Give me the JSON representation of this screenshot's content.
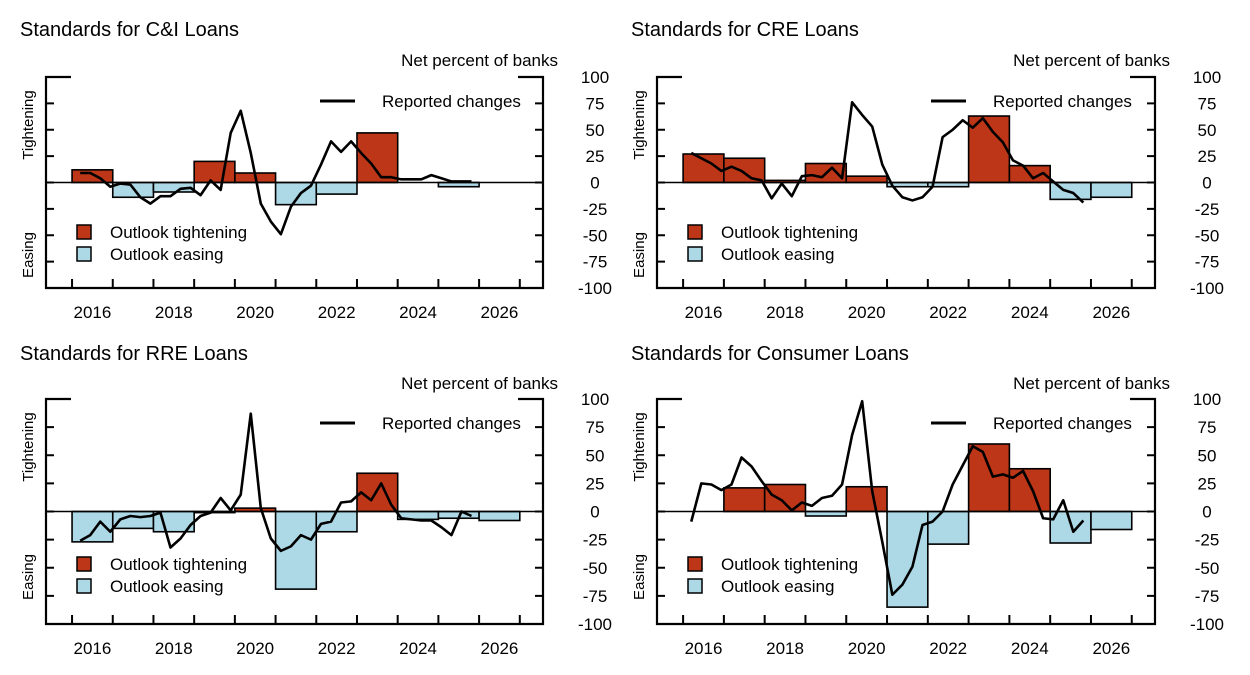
{
  "colors": {
    "tightening": "#BD3617",
    "easing": "#ADD8E6",
    "line": "#000000"
  },
  "chart_data": [
    {
      "type": "bar+line",
      "title": "Standards for C&I Loans",
      "ylabel": "Net percent of banks",
      "upper_label": "Tightening",
      "lower_label": "Easing",
      "ylim": [
        -100,
        100
      ],
      "yticks": [
        "100",
        "75",
        "50",
        "25",
        "0",
        "-25",
        "-50",
        "-75",
        "-100"
      ],
      "xticks": [
        "2016",
        "2018",
        "2020",
        "2022",
        "2024",
        "2026"
      ],
      "legend": [
        "Reported changes",
        "Outlook tightening",
        "Outlook easing"
      ],
      "bars": {
        "categories": [
          "2016",
          "2017",
          "2018",
          "2019",
          "2020",
          "2021",
          "2022",
          "2023",
          "2024",
          "2025",
          "2026"
        ],
        "values": [
          12,
          -14,
          -9,
          20,
          9,
          -21,
          -11,
          47,
          0,
          -4,
          0
        ]
      },
      "line": {
        "name": "Reported changes",
        "values": [
          9,
          9,
          4,
          -4,
          -1,
          -2,
          -14,
          -20,
          -13,
          -13,
          -6,
          -5,
          -12,
          2,
          -7,
          47,
          68,
          28,
          -20,
          -37,
          -49,
          -23,
          -10,
          -3,
          17,
          39,
          29,
          39,
          28,
          18,
          5,
          5,
          3,
          3,
          3,
          7,
          4,
          1,
          1,
          1
        ]
      }
    },
    {
      "type": "bar+line",
      "title": "Standards for CRE Loans",
      "ylabel": "Net percent of banks",
      "upper_label": "Tightening",
      "lower_label": "Easing",
      "ylim": [
        -100,
        100
      ],
      "yticks": [
        "100",
        "75",
        "50",
        "25",
        "0",
        "-25",
        "-50",
        "-75",
        "-100"
      ],
      "xticks": [
        "2016",
        "2018",
        "2020",
        "2022",
        "2024",
        "2026"
      ],
      "legend": [
        "Reported changes",
        "Outlook tightening",
        "Outlook easing"
      ],
      "bars": {
        "categories": [
          "2016",
          "2017",
          "2018",
          "2019",
          "2020",
          "2021",
          "2022",
          "2023",
          "2024",
          "2025",
          "2026"
        ],
        "values": [
          27,
          23,
          2,
          18,
          6,
          -4,
          -4,
          63,
          16,
          -16,
          -14
        ]
      },
      "line": {
        "name": "Reported changes",
        "values": [
          28,
          23,
          18,
          11,
          15,
          11,
          4,
          2,
          -15,
          -1,
          -13,
          6,
          7,
          5,
          14,
          4,
          76,
          64,
          53,
          17,
          -3,
          -14,
          -17,
          -14,
          -4,
          43,
          50,
          59,
          52,
          61,
          48,
          38,
          21,
          16,
          4,
          9,
          1,
          -7,
          -10,
          -19
        ]
      }
    },
    {
      "type": "bar+line",
      "title": "Standards for RRE Loans",
      "ylabel": "Net percent of banks",
      "upper_label": "Tightening",
      "lower_label": "Easing",
      "ylim": [
        -100,
        100
      ],
      "yticks": [
        "100",
        "75",
        "50",
        "25",
        "0",
        "-25",
        "-50",
        "-75",
        "-100"
      ],
      "xticks": [
        "2016",
        "2018",
        "2020",
        "2022",
        "2024",
        "2026"
      ],
      "legend": [
        "Reported changes",
        "Outlook tightening",
        "Outlook easing"
      ],
      "bars": {
        "categories": [
          "2016",
          "2017",
          "2018",
          "2019",
          "2020",
          "2021",
          "2022",
          "2023",
          "2024",
          "2025",
          "2026"
        ],
        "values": [
          -27,
          -15,
          -18,
          -1,
          3,
          -69,
          -18,
          34,
          -7,
          -6,
          -8
        ]
      },
      "line": {
        "name": "Reported changes",
        "values": [
          -26,
          -21,
          -9,
          -18,
          -7,
          -4,
          -5,
          -4,
          -1,
          -32,
          -24,
          -12,
          -4,
          -1,
          12,
          1,
          15,
          87,
          3,
          -24,
          -35,
          -31,
          -21,
          -25,
          -11,
          -9,
          8,
          9,
          17,
          10,
          25,
          6,
          -6,
          -7,
          -8,
          -8,
          -14,
          -21,
          0,
          -4
        ]
      }
    },
    {
      "type": "bar+line",
      "title": "Standards for Consumer Loans",
      "ylabel": "Net percent of banks",
      "upper_label": "Tightening",
      "lower_label": "Easing",
      "ylim": [
        -100,
        100
      ],
      "yticks": [
        "100",
        "75",
        "50",
        "25",
        "0",
        "-25",
        "-50",
        "-75",
        "-100"
      ],
      "xticks": [
        "2016",
        "2018",
        "2020",
        "2022",
        "2024",
        "2026"
      ],
      "legend": [
        "Reported changes",
        "Outlook tightening",
        "Outlook easing"
      ],
      "bars": {
        "categories": [
          "2016",
          "2017",
          "2018",
          "2019",
          "2020",
          "2021",
          "2022",
          "2023",
          "2024",
          "2025",
          "2026"
        ],
        "values": [
          0,
          21,
          24,
          -4,
          22,
          -85,
          -29,
          60,
          38,
          -28,
          -16
        ]
      },
      "line": {
        "name": "Reported changes",
        "values": [
          -9,
          25,
          24,
          19,
          24,
          48,
          40,
          27,
          15,
          10,
          1,
          8,
          5,
          12,
          14,
          24,
          68,
          98,
          18,
          -27,
          -74,
          -65,
          -49,
          -12,
          -9,
          0,
          24,
          41,
          58,
          53,
          31,
          33,
          30,
          36,
          18,
          -6,
          -7,
          10,
          -18,
          -8
        ]
      }
    }
  ],
  "line_x": {
    "start": "2016Q1",
    "end": "2025Q4",
    "frequency": "quarterly"
  }
}
